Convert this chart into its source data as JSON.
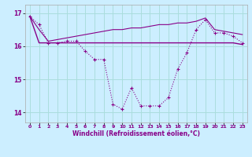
{
  "xlabel": "Windchill (Refroidissement éolien,°C)",
  "bg_color": "#cceeff",
  "grid_color": "#aadddd",
  "line_color": "#880088",
  "hours": [
    0,
    1,
    2,
    3,
    4,
    5,
    6,
    7,
    8,
    9,
    10,
    11,
    12,
    13,
    14,
    15,
    16,
    17,
    18,
    19,
    20,
    21,
    22,
    23
  ],
  "series1": [
    16.9,
    16.65,
    16.1,
    16.1,
    16.15,
    16.15,
    15.85,
    15.6,
    15.6,
    14.25,
    14.1,
    14.75,
    14.2,
    14.2,
    14.2,
    14.45,
    15.3,
    15.8,
    16.5,
    16.8,
    16.4,
    16.4,
    16.3,
    16.1
  ],
  "series2": [
    16.9,
    16.1,
    16.1,
    16.1,
    16.1,
    16.1,
    16.1,
    16.1,
    16.1,
    16.1,
    16.1,
    16.1,
    16.1,
    16.1,
    16.1,
    16.1,
    16.1,
    16.1,
    16.1,
    16.1,
    16.1,
    16.1,
    16.1,
    16.05
  ],
  "series3": [
    16.9,
    16.5,
    16.15,
    16.2,
    16.25,
    16.3,
    16.35,
    16.4,
    16.45,
    16.5,
    16.5,
    16.55,
    16.55,
    16.6,
    16.65,
    16.65,
    16.7,
    16.7,
    16.75,
    16.85,
    16.5,
    16.45,
    16.4,
    16.35
  ],
  "ylim": [
    13.7,
    17.25
  ],
  "yticks": [
    14,
    15,
    16,
    17
  ],
  "xticks": [
    0,
    1,
    2,
    3,
    4,
    5,
    6,
    7,
    8,
    9,
    10,
    11,
    12,
    13,
    14,
    15,
    16,
    17,
    18,
    19,
    20,
    21,
    22,
    23
  ],
  "xlim": [
    -0.5,
    23.5
  ]
}
